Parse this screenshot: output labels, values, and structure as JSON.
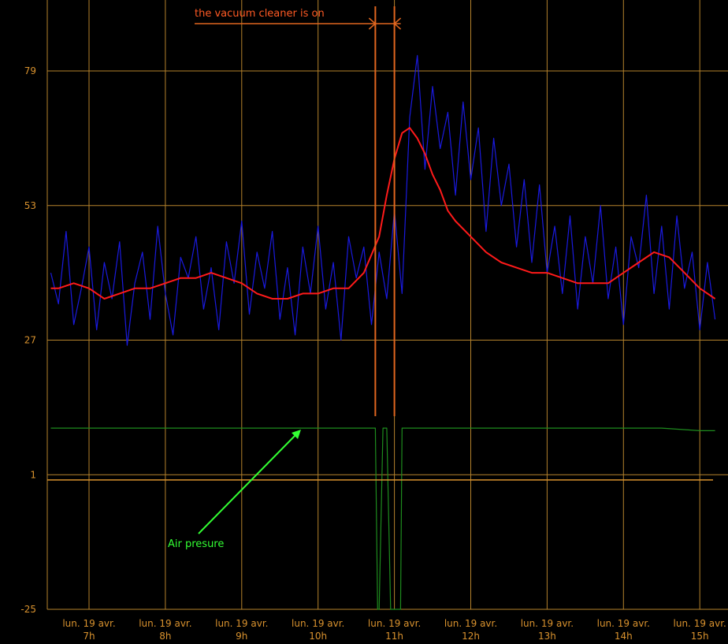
{
  "chart_data": {
    "type": "line",
    "title": "",
    "xlabel": "",
    "ylabel": "",
    "ylim": [
      -25,
      90
    ],
    "y_ticks": [
      "79",
      "53",
      "27",
      "1",
      "-25"
    ],
    "x_ticks": [
      {
        "date": "lun. 19 avr.",
        "hour": "7h"
      },
      {
        "date": "lun. 19 avr.",
        "hour": "8h"
      },
      {
        "date": "lun. 19 avr.",
        "hour": "9h"
      },
      {
        "date": "lun. 19 avr.",
        "hour": "10h"
      },
      {
        "date": "lun. 19 avr.",
        "hour": "11h"
      },
      {
        "date": "lun. 19 avr.",
        "hour": "12h"
      },
      {
        "date": "lun. 19 avr.",
        "hour": "13h"
      },
      {
        "date": "lun. 19 avr.",
        "hour": "14h"
      },
      {
        "date": "lun. 19 avr.",
        "hour": "15h"
      }
    ],
    "x_range_hours": [
      6.5,
      15.2
    ],
    "grid": true,
    "colors": {
      "grid": "#b5822c",
      "raw": "#1a1adf",
      "smoothed": "#ff1a1a",
      "air": "#1e8c1e",
      "vacuum_marker": "#e0661f",
      "air_arrow": "#33ff33"
    },
    "series": [
      {
        "role": "raw",
        "x": [
          6.5,
          6.6,
          6.7,
          6.8,
          6.9,
          7.0,
          7.1,
          7.2,
          7.3,
          7.4,
          7.5,
          7.6,
          7.7,
          7.8,
          7.9,
          8.0,
          8.1,
          8.2,
          8.3,
          8.4,
          8.5,
          8.6,
          8.7,
          8.8,
          8.9,
          9.0,
          9.1,
          9.2,
          9.3,
          9.4,
          9.5,
          9.6,
          9.7,
          9.8,
          9.9,
          10.0,
          10.1,
          10.2,
          10.3,
          10.4,
          10.5,
          10.6,
          10.7,
          10.8,
          10.9,
          11.0,
          11.1,
          11.2,
          11.3,
          11.4,
          11.5,
          11.6,
          11.7,
          11.8,
          11.9,
          12.0,
          12.1,
          12.2,
          12.3,
          12.4,
          12.5,
          12.6,
          12.7,
          12.8,
          12.9,
          13.0,
          13.1,
          13.2,
          13.3,
          13.4,
          13.5,
          13.6,
          13.7,
          13.8,
          13.9,
          14.0,
          14.1,
          14.2,
          14.3,
          14.4,
          14.5,
          14.6,
          14.7,
          14.8,
          14.9,
          15.0,
          15.1,
          15.2
        ],
        "y": [
          40,
          34,
          48,
          30,
          37,
          45,
          29,
          42,
          35,
          46,
          26,
          38,
          44,
          31,
          49,
          36,
          28,
          43,
          39,
          47,
          33,
          41,
          29,
          46,
          38,
          50,
          32,
          44,
          37,
          48,
          31,
          41,
          28,
          45,
          36,
          49,
          33,
          42,
          27,
          47,
          39,
          45,
          30,
          44,
          35,
          52,
          36,
          70,
          82,
          60,
          76,
          64,
          71,
          55,
          73,
          58,
          68,
          48,
          66,
          53,
          61,
          45,
          58,
          42,
          57,
          40,
          49,
          36,
          51,
          33,
          47,
          38,
          53,
          35,
          45,
          30,
          47,
          41,
          55,
          36,
          49,
          33,
          51,
          37,
          44,
          29,
          42,
          31
        ]
      },
      {
        "role": "smoothed",
        "x": [
          6.5,
          6.6,
          6.8,
          7.0,
          7.2,
          7.4,
          7.6,
          7.8,
          8.0,
          8.2,
          8.4,
          8.6,
          8.8,
          9.0,
          9.2,
          9.4,
          9.6,
          9.8,
          10.0,
          10.2,
          10.4,
          10.6,
          10.8,
          10.9,
          11.0,
          11.1,
          11.2,
          11.3,
          11.4,
          11.5,
          11.6,
          11.7,
          11.8,
          12.0,
          12.2,
          12.4,
          12.6,
          12.8,
          13.0,
          13.2,
          13.4,
          13.6,
          13.8,
          14.0,
          14.2,
          14.4,
          14.6,
          14.8,
          15.0,
          15.2
        ],
        "y": [
          37,
          37,
          38,
          37,
          35,
          36,
          37,
          37,
          38,
          39,
          39,
          40,
          39,
          38,
          36,
          35,
          35,
          36,
          36,
          37,
          37,
          40,
          47,
          55,
          62,
          67,
          68,
          66,
          63,
          59,
          56,
          52,
          50,
          47,
          44,
          42,
          41,
          40,
          40,
          39,
          38,
          38,
          38,
          40,
          42,
          44,
          43,
          40,
          37,
          35
        ]
      },
      {
        "role": "air",
        "x": [
          6.5,
          7.0,
          7.5,
          8.0,
          8.5,
          9.0,
          9.5,
          10.0,
          10.5,
          10.75,
          10.78,
          10.8,
          10.85,
          10.9,
          10.95,
          11.0,
          11.05,
          11.08,
          11.1,
          11.15,
          11.2,
          11.5,
          12.0,
          12.5,
          13.0,
          13.5,
          14.0,
          14.5,
          15.0,
          15.2
        ],
        "y": [
          10,
          10,
          10,
          10,
          10,
          10,
          10,
          10,
          10,
          10,
          -25,
          -25,
          10,
          10,
          -25,
          -25,
          -25,
          -25,
          10,
          10,
          10,
          10,
          10,
          10,
          10,
          10,
          10,
          10,
          9.5,
          9.5
        ]
      }
    ],
    "annotations": [
      {
        "text": "the vacuum cleaner is on",
        "type": "bracket",
        "x_start": 10.75,
        "x_end": 11.0
      },
      {
        "text": "Air presure",
        "type": "arrow",
        "points_to_series": "air"
      }
    ]
  }
}
